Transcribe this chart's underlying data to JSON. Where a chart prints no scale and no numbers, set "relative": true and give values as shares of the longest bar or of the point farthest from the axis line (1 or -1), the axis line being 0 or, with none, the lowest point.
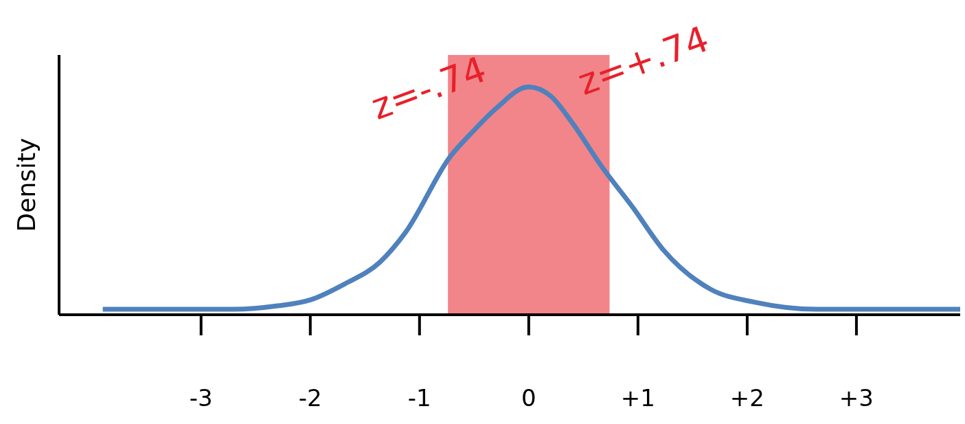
{
  "chart_data": {
    "type": "line",
    "ylabel": "Density",
    "relative": true,
    "x": [
      -3.9,
      -2.7,
      -2.3,
      -2.0,
      -1.69,
      -1.36,
      -1.13,
      -0.72,
      -0.5,
      -0.3,
      0,
      0.2,
      0.39,
      0.67,
      0.95,
      1.23,
      1.66,
      2.08,
      2.64,
      3.95
    ],
    "series": [
      {
        "color": "#4f81bd",
        "values": [
          0.024,
          0.024,
          0.039,
          0.065,
          0.134,
          0.232,
          0.36,
          0.693,
          0.81,
          0.905,
          1.0,
          0.96,
          0.848,
          0.649,
          0.473,
          0.286,
          0.113,
          0.054,
          0.024,
          0.024
        ]
      }
    ],
    "xlim": [
      -4.3,
      3.95
    ],
    "xticks": [
      -3,
      -2,
      -1,
      0,
      {
        "value": 1,
        "label": "+1"
      },
      {
        "value": 2,
        "label": "+2"
      },
      {
        "value": 3,
        "label": "+3"
      }
    ],
    "bands": [
      {
        "axis": "x",
        "from": -0.74,
        "to": 0.74,
        "color": "#e8202a"
      }
    ],
    "annotations": [
      "z=-.74",
      "z=+.74"
    ],
    "grid": false,
    "legend": false,
    "marker": "none",
    "line_style": "solid"
  }
}
